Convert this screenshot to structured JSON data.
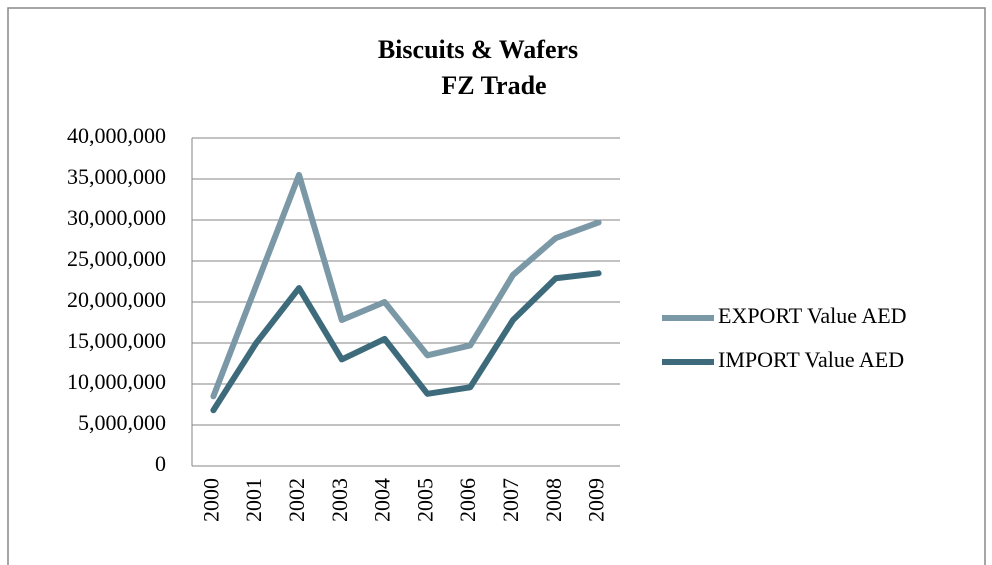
{
  "chart_data": {
    "type": "line",
    "title": [
      "Biscuits & Wafers",
      "FZ Trade"
    ],
    "categories": [
      "2000",
      "2001",
      "2002",
      "2003",
      "2004",
      "2005",
      "2006",
      "2007",
      "2008",
      "2009"
    ],
    "series": [
      {
        "name": "EXPORT Value AED",
        "color": "#7b98a7",
        "values": [
          8500000,
          22000000,
          35500000,
          17800000,
          20000000,
          13500000,
          14700000,
          23300000,
          27800000,
          29700000
        ]
      },
      {
        "name": "IMPORT Value AED",
        "color": "#3e6b7b",
        "values": [
          6800000,
          15000000,
          21700000,
          13000000,
          15500000,
          8800000,
          9600000,
          17800000,
          22900000,
          23500000
        ]
      }
    ],
    "ylim": [
      0,
      40000000
    ],
    "yticks": [
      0,
      {
        "value": 5000000,
        "label": "5,000,000"
      },
      {
        "value": 10000000,
        "label": "10,000,000"
      },
      {
        "value": 15000000,
        "label": "15,000,000"
      },
      {
        "value": 20000000,
        "label": "20,000,000"
      },
      {
        "value": 25000000,
        "label": "25,000,000"
      },
      {
        "value": 30000000,
        "label": "30,000,000"
      },
      {
        "value": 35000000,
        "label": "35,000,000"
      },
      {
        "value": 40000000,
        "label": "40,000,000"
      }
    ],
    "grid": true,
    "legend": "right"
  }
}
